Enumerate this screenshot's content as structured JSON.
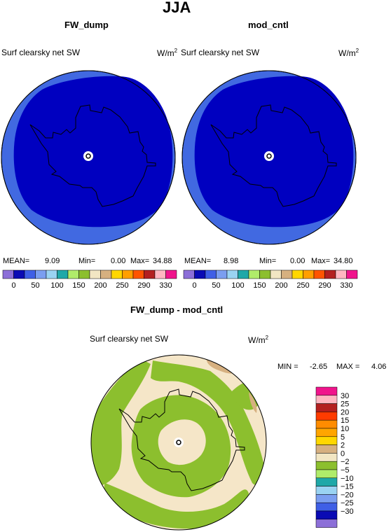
{
  "page_title": "JJA",
  "panels": [
    {
      "title": "FW_dump",
      "variable": "Surf clearsky net SW",
      "units_base": "W/m",
      "units_exp": "2",
      "stats": {
        "mean_label": "MEAN=",
        "mean": "9.09",
        "min_label": "Min=",
        "min": "0.00",
        "max_label": "Max=",
        "max": "34.88"
      }
    },
    {
      "title": "mod_cntl",
      "variable": "Surf clearsky net SW",
      "units_base": "W/m",
      "units_exp": "2",
      "stats": {
        "mean_label": "MEAN=",
        "mean": "8.98",
        "min_label": "Min=",
        "min": "0.00",
        "max_label": "Max=",
        "max": "34.80"
      }
    },
    {
      "title": "FW_dump - mod_cntl",
      "variable": "Surf clearsky net SW",
      "units_base": "W/m",
      "units_exp": "2",
      "stats": {
        "min_label": "MIN =",
        "min": "-2.65",
        "max_label": "MAX =",
        "max": "4.06"
      }
    }
  ],
  "abs_colorbar": {
    "colors": [
      "#8c6fd8",
      "#0a0ab4",
      "#3f5fe6",
      "#7b9ef0",
      "#9ad3f2",
      "#1fa8a8",
      "#b0ec6a",
      "#8cbf2e",
      "#f2e6c3",
      "#d6b080",
      "#ffd700",
      "#ff9f00",
      "#ff5500",
      "#b32020",
      "#ffb6c1",
      "#f0148c"
    ],
    "tick_labels": [
      "0",
      "50",
      "100",
      "150",
      "200",
      "250",
      "290",
      "330"
    ]
  },
  "diff_colorbar": {
    "colors_top_to_bottom": [
      "#f0148c",
      "#ffb6c1",
      "#b32020",
      "#ff3b00",
      "#ff8c00",
      "#ffa500",
      "#ffd700",
      "#d6b080",
      "#f2e6c3",
      "#8cbf2e",
      "#b0ec6a",
      "#1fa8a8",
      "#9ad3f2",
      "#7b9ef0",
      "#3f5fe6",
      "#0a0ab4",
      "#8c6fd8"
    ],
    "tick_labels_top_to_bottom": [
      "30",
      "25",
      "20",
      "15",
      "10",
      "5",
      "2",
      "0",
      "−2",
      "−5",
      "−10",
      "−15",
      "−20",
      "−25",
      "−30"
    ]
  },
  "map_colors": {
    "abs_outer": "#4169e1",
    "abs_inner": "#0000c0",
    "diff_neutral": "#f5e6c8",
    "diff_green": "#8cbf2e",
    "diff_tan": "#d6b080",
    "boundary_line": "#000000",
    "pole_marker": "#ffffff"
  }
}
